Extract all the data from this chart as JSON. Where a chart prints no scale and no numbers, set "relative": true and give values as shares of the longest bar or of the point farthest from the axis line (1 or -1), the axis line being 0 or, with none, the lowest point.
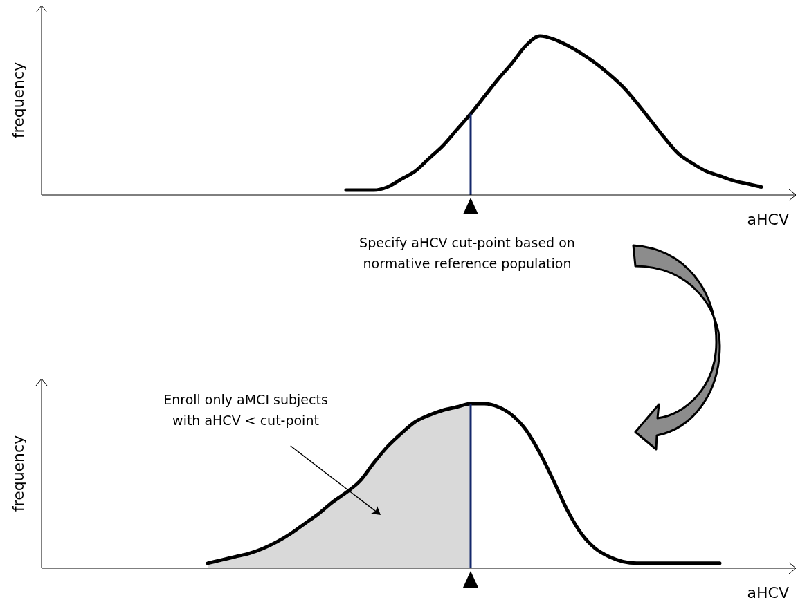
{
  "chart_data": [
    {
      "type": "line",
      "relative": true,
      "xlabel": "aHCV",
      "ylabel": "frequency",
      "line_style": "solid",
      "marker": "none",
      "categories": [
        null,
        null,
        null,
        null,
        null,
        null,
        null,
        null,
        null,
        null,
        null,
        null,
        null,
        null,
        null,
        null,
        null,
        null,
        null,
        null,
        null,
        null,
        null,
        null,
        null,
        null,
        null,
        null,
        null,
        null,
        null,
        null,
        null,
        null,
        null,
        null,
        null,
        null,
        null,
        null,
        null,
        null,
        null,
        null,
        null,
        null,
        null,
        null,
        null,
        null,
        null,
        null,
        null,
        null,
        null
      ],
      "series": [
        {
          "color": "#000000",
          "values": [
            null,
            null,
            null,
            null,
            null,
            null,
            null,
            null,
            null,
            null,
            null,
            null,
            null,
            null,
            null,
            null,
            null,
            null,
            null,
            null,
            null,
            null,
            0.03,
            0.03,
            0.03,
            0.05,
            0.1,
            0.15,
            0.23,
            0.31,
            0.41,
            0.51,
            0.62,
            0.73,
            0.83,
            0.94,
            1.0,
            0.98,
            0.94,
            0.89,
            0.83,
            0.76,
            0.68,
            0.58,
            0.47,
            0.36,
            0.26,
            0.2,
            0.15,
            0.12,
            0.09,
            0.07,
            0.05,
            null,
            null
          ]
        }
      ],
      "annotations": [
        "Specify aHCV cut-point based on\nnormative reference population"
      ]
    },
    {
      "type": "line",
      "relative": true,
      "xlabel": "aHCV",
      "ylabel": "frequency",
      "line_style": "solid",
      "marker": "none",
      "categories": [
        null,
        null,
        null,
        null,
        null,
        null,
        null,
        null,
        null,
        null,
        null,
        null,
        null,
        null,
        null,
        null,
        null,
        null,
        null,
        null,
        null,
        null,
        null,
        null,
        null,
        null,
        null,
        null,
        null,
        null,
        null,
        null,
        null,
        null,
        null,
        null,
        null,
        null,
        null,
        null,
        null,
        null,
        null,
        null,
        null,
        null,
        null,
        null,
        null,
        null,
        null,
        null,
        null,
        null,
        null
      ],
      "series": [
        {
          "type": "area",
          "color": "#d9d9d9",
          "values": [
            null,
            null,
            null,
            null,
            null,
            null,
            null,
            null,
            null,
            null,
            null,
            null,
            0.03,
            0.05,
            0.07,
            0.09,
            0.12,
            0.16,
            0.21,
            0.27,
            0.33,
            0.4,
            0.46,
            0.53,
            0.64,
            0.74,
            0.82,
            0.89,
            0.93,
            0.96,
            0.98,
            1.0,
            null,
            null,
            null,
            null,
            null,
            null,
            null,
            null,
            null,
            null,
            null,
            null,
            null,
            null,
            null,
            null,
            null,
            null,
            null,
            null,
            null,
            null,
            null
          ]
        },
        {
          "color": "#000000",
          "values": [
            null,
            null,
            null,
            null,
            null,
            null,
            null,
            null,
            null,
            null,
            null,
            null,
            0.03,
            0.05,
            0.07,
            0.09,
            0.12,
            0.16,
            0.21,
            0.27,
            0.33,
            0.4,
            0.46,
            0.53,
            0.64,
            0.74,
            0.82,
            0.89,
            0.93,
            0.96,
            0.98,
            1.0,
            1.0,
            0.98,
            0.93,
            0.84,
            0.7,
            0.53,
            0.35,
            0.21,
            0.12,
            0.07,
            0.04,
            0.03,
            0.03,
            0.03,
            0.03,
            0.03,
            0.03,
            0.03,
            null,
            null,
            null,
            null,
            null
          ]
        }
      ],
      "annotations": [
        "Enroll only aMCI subjects\nwith aHCV < cut-point"
      ]
    }
  ]
}
